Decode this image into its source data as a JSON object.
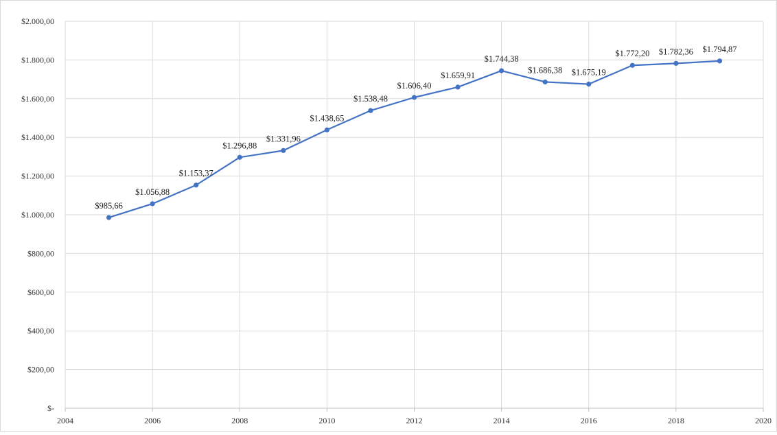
{
  "chart_data": {
    "type": "line",
    "title": "",
    "xlabel": "",
    "ylabel": "",
    "xlim": [
      2004,
      2020
    ],
    "ylim": [
      0,
      2000
    ],
    "x_ticks": [
      2004,
      2006,
      2008,
      2010,
      2012,
      2014,
      2016,
      2018,
      2020
    ],
    "x_tick_labels": [
      "2004",
      "2006",
      "2008",
      "2010",
      "2012",
      "2014",
      "2016",
      "2018",
      "2020"
    ],
    "y_ticks": [
      0,
      200,
      400,
      600,
      800,
      1000,
      1200,
      1400,
      1600,
      1800,
      2000
    ],
    "y_tick_labels": [
      "$-",
      "$200,00",
      "$400,00",
      "$600,00",
      "$800,00",
      "$1.000,00",
      "$1.200,00",
      "$1.400,00",
      "$1.600,00",
      "$1.800,00",
      "$2.000,00"
    ],
    "grid": true,
    "legend": "none",
    "series": [
      {
        "color": "#4472c4",
        "x": [
          2005,
          2006,
          2007,
          2008,
          2009,
          2010,
          2011,
          2012,
          2013,
          2014,
          2015,
          2016,
          2017,
          2018,
          2019
        ],
        "values": [
          985.66,
          1056.88,
          1153.37,
          1296.88,
          1331.96,
          1438.65,
          1538.48,
          1606.4,
          1659.91,
          1744.38,
          1686.38,
          1675.19,
          1772.2,
          1782.36,
          1794.87
        ],
        "labels": [
          "$985,66",
          "$1.056,88",
          "$1.153,37",
          "$1.296,88",
          "$1.331,96",
          "$1.438,65",
          "$1.538,48",
          "$1.606,40",
          "$1.659,91",
          "$1.744,38",
          "$1.686,38",
          "$1.675,19",
          "$1.772,20",
          "$1.782,36",
          "$1.794,87"
        ]
      }
    ]
  }
}
